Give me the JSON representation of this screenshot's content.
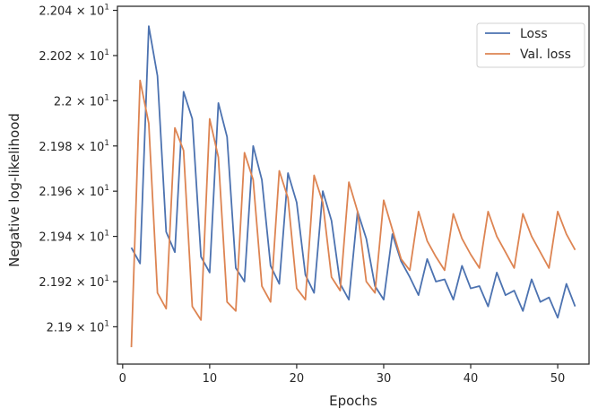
{
  "chart_data": {
    "type": "line",
    "title": "",
    "xlabel": "Epochs",
    "ylabel": "Negative log-likelihood",
    "xlim": [
      -0.6,
      53.6
    ],
    "ylim": [
      21.8835,
      22.0418
    ],
    "x_ticks": [
      {
        "value": 0,
        "label": "0"
      },
      {
        "value": 10,
        "label": "10"
      },
      {
        "value": 20,
        "label": "20"
      },
      {
        "value": 30,
        "label": "30"
      },
      {
        "value": 40,
        "label": "40"
      },
      {
        "value": 50,
        "label": "50"
      }
    ],
    "y_ticks": [
      {
        "value": 22.04,
        "mantissa": "2.204"
      },
      {
        "value": 22.02,
        "mantissa": "2.202"
      },
      {
        "value": 22.0,
        "mantissa": "2.2"
      },
      {
        "value": 21.98,
        "mantissa": "2.198"
      },
      {
        "value": 21.96,
        "mantissa": "2.196"
      },
      {
        "value": 21.94,
        "mantissa": "2.194"
      },
      {
        "value": 21.92,
        "mantissa": "2.192"
      },
      {
        "value": 21.9,
        "mantissa": "2.19"
      }
    ],
    "y_tick_suffix": "× 10",
    "y_tick_exponent": "1",
    "grid": false,
    "legend": "top-right",
    "x": [
      1,
      2,
      3,
      4,
      5,
      6,
      7,
      8,
      9,
      10,
      11,
      12,
      13,
      14,
      15,
      16,
      17,
      18,
      19,
      20,
      21,
      22,
      23,
      24,
      25,
      26,
      27,
      28,
      29,
      30,
      31,
      32,
      33,
      34,
      35,
      36,
      37,
      38,
      39,
      40,
      41,
      42,
      43,
      44,
      45,
      46,
      47,
      48,
      49,
      50,
      51,
      52
    ],
    "series": [
      {
        "name": "Loss",
        "color": "#4c72b0",
        "values": [
          21.935,
          21.928,
          22.033,
          22.011,
          21.942,
          21.933,
          22.004,
          21.992,
          21.931,
          21.924,
          21.999,
          21.984,
          21.926,
          21.92,
          21.98,
          21.965,
          21.927,
          21.919,
          21.968,
          21.955,
          21.923,
          21.915,
          21.96,
          21.947,
          21.919,
          21.912,
          21.951,
          21.939,
          21.918,
          21.912,
          21.941,
          21.929,
          21.922,
          21.914,
          21.93,
          21.92,
          21.921,
          21.912,
          21.927,
          21.917,
          21.918,
          21.909,
          21.924,
          21.914,
          21.916,
          21.907,
          21.921,
          21.911,
          21.913,
          21.904,
          21.919,
          21.909
        ]
      },
      {
        "name": "Val. loss",
        "color": "#dd8452",
        "values": [
          21.891,
          22.009,
          21.99,
          21.915,
          21.908,
          21.988,
          21.978,
          21.909,
          21.903,
          21.992,
          21.975,
          21.911,
          21.907,
          21.977,
          21.965,
          21.918,
          21.911,
          21.969,
          21.957,
          21.917,
          21.912,
          21.967,
          21.955,
          21.922,
          21.916,
          21.964,
          21.951,
          21.92,
          21.915,
          21.956,
          21.943,
          21.93,
          21.925,
          21.951,
          21.938,
          21.931,
          21.925,
          21.95,
          21.939,
          21.932,
          21.926,
          21.951,
          21.94,
          21.933,
          21.926,
          21.95,
          21.94,
          21.933,
          21.926,
          21.951,
          21.941,
          21.934
        ]
      }
    ]
  }
}
